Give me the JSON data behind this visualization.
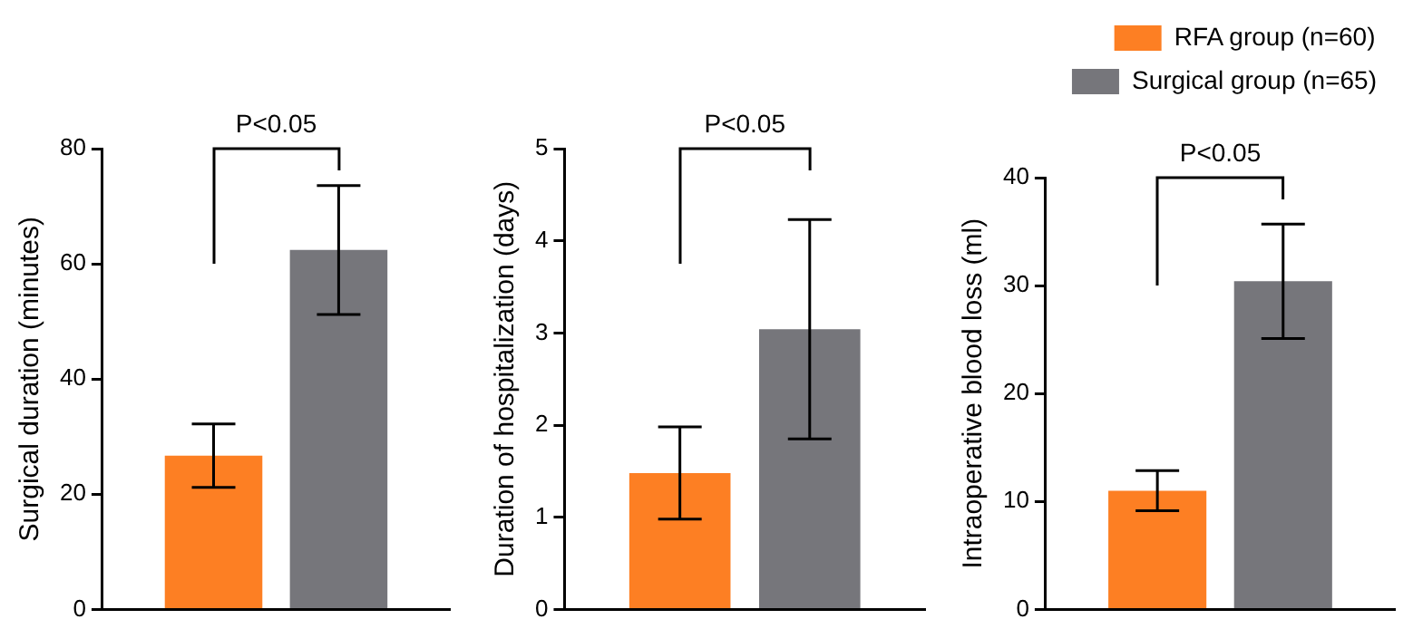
{
  "chart_data": [
    {
      "type": "bar",
      "ylabel": "Surgical duration (minutes)",
      "categories": [
        null
      ],
      "ylim": [
        0,
        80
      ],
      "yticks": [
        0,
        20,
        40,
        60,
        80
      ],
      "annotations": [
        "P<0.05"
      ],
      "legend": false,
      "grid": false,
      "series": [
        {
          "color": "#fd7f23",
          "values": [
            26.7
          ],
          "errors": [
            5.5
          ]
        },
        {
          "color": "#76767b",
          "values": [
            62.4
          ],
          "errors": [
            11.2
          ]
        }
      ]
    },
    {
      "type": "bar",
      "ylabel": "Duration of hospitalization (days)",
      "categories": [
        null
      ],
      "ylim": [
        0,
        5
      ],
      "yticks": [
        0,
        1,
        2,
        3,
        4,
        5
      ],
      "annotations": [
        "P<0.05"
      ],
      "legend": false,
      "grid": false,
      "series": [
        {
          "color": "#fd7f23",
          "values": [
            1.48
          ],
          "errors": [
            0.5
          ]
        },
        {
          "color": "#76767b",
          "values": [
            3.04
          ],
          "errors": [
            1.19
          ]
        }
      ]
    },
    {
      "type": "bar",
      "ylabel": "Intraoperative blood loss (ml)",
      "categories": [
        null
      ],
      "ylim": [
        0,
        40
      ],
      "yticks": [
        0,
        10,
        20,
        30,
        40
      ],
      "annotations": [
        "P<0.05"
      ],
      "legend": "top right",
      "grid": false,
      "series": [
        {
          "name": "RFA group (n=60)",
          "color": "#fd7f23",
          "values": [
            11.0
          ],
          "errors": [
            1.85
          ]
        },
        {
          "name": "Surgical group (n=65)",
          "color": "#76767b",
          "values": [
            30.4
          ],
          "errors": [
            5.3
          ]
        }
      ]
    }
  ]
}
